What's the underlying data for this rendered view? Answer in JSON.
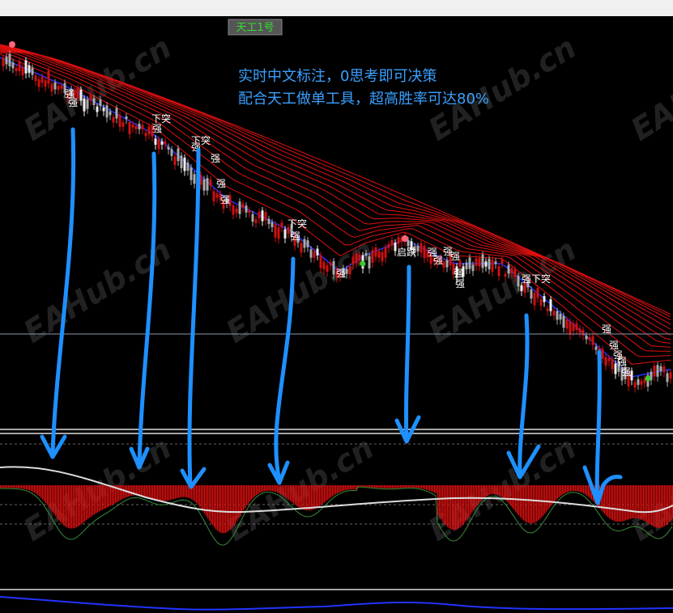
{
  "tab": "天工1号",
  "annotation": [
    "实时中文标注，0思考即可决策",
    "配合天工做单工具，超高胜率可达80%"
  ],
  "signals": [
    "强",
    "强",
    "下突",
    "强",
    "下突",
    "强",
    "强",
    "强",
    "强",
    "下突",
    "强",
    "强",
    "启跌",
    "强",
    "强",
    "强",
    "强",
    "强",
    "强",
    "强",
    "下突",
    "强",
    "强",
    "强",
    "强",
    "强"
  ],
  "watermark": "EAHub.cn"
}
